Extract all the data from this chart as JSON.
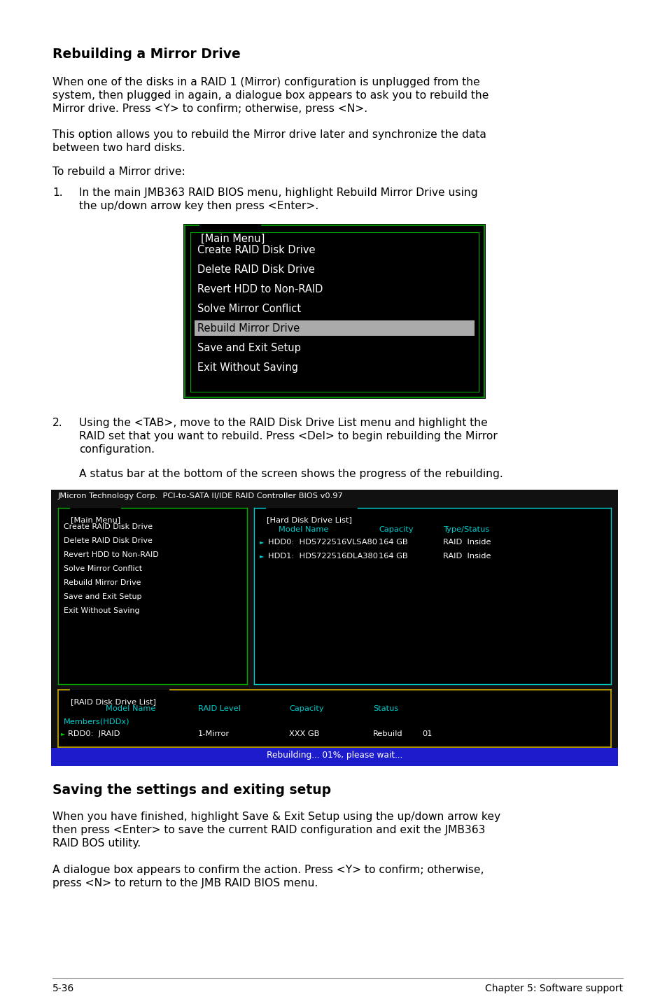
{
  "bg_color": "#ffffff",
  "title1": "Rebuilding a Mirror Drive",
  "para1_lines": [
    "When one of the disks in a RAID 1 (Mirror) configuration is unplugged from the",
    "system, then plugged in again, a dialogue box appears to ask you to rebuild the",
    "Mirror drive. Press <Y> to confirm; otherwise, press <N>."
  ],
  "para2_lines": [
    "This option allows you to rebuild the Mirror drive later and synchronize the data",
    "between two hard disks."
  ],
  "para3": "To rebuild a Mirror drive:",
  "step1_num": "1.",
  "step1_lines": [
    "In the main JMB363 RAID BIOS menu, highlight Rebuild Mirror Drive using",
    "the up/down arrow key then press <Enter>."
  ],
  "menu1_title": "[Main Menu]",
  "menu1_border_color": "#00aa00",
  "menu1_items": [
    "Create RAID Disk Drive",
    "Delete RAID Disk Drive",
    "Revert HDD to Non-RAID",
    "Solve Mirror Conflict",
    "Rebuild Mirror Drive",
    "Save and Exit Setup",
    "Exit Without Saving"
  ],
  "menu1_highlighted": 4,
  "step2_num": "2.",
  "step2_lines": [
    "Using the <TAB>, move to the RAID Disk Drive List menu and highlight the",
    "RAID set that you want to rebuild. Press <Del> to begin rebuilding the Mirror",
    "configuration."
  ],
  "para4": "A status bar at the bottom of the screen shows the progress of the rebuilding.",
  "bios_header": "JMicron Technology Corp.  PCI-to-SATA II/IDE RAID Controller BIOS v0.97",
  "bios_main_menu_title": "[Main Menu]",
  "bios_main_items": [
    "Create RAID Disk Drive",
    "Delete RAID Disk Drive",
    "Revert HDD to Non-RAID",
    "Solve Mirror Conflict",
    "Rebuild Mirror Drive",
    "Save and Exit Setup",
    "Exit Without Saving"
  ],
  "bios_hdd_title": "[Hard Disk Drive List]",
  "bios_hdd_headers": [
    "Model Name",
    "Capacity",
    "Type/Status"
  ],
  "bios_hdd_rows": [
    [
      "HDD0:  HDS722516VLSA80",
      "164 GB",
      "RAID  Inside"
    ],
    [
      "HDD1:  HDS722516DLA380",
      "164 GB",
      "RAID  Inside"
    ]
  ],
  "bios_raid_title": "[RAID Disk Drive List]",
  "bios_raid_headers": [
    "Model Name",
    "RAID Level",
    "Capacity",
    "Status"
  ],
  "bios_raid_submember": "Members(HDDx)",
  "bios_raid_rows": [
    [
      "RDD0:  JRAID",
      "1-Mirror",
      "XXX GB",
      "Rebuild",
      "01"
    ]
  ],
  "bios_status_bar": "Rebuilding... 01%, please wait...",
  "title2": "Saving the settings and exiting setup",
  "para5_lines": [
    "When you have finished, highlight Save & Exit Setup using the up/down arrow key",
    "then press <Enter> to save the current RAID configuration and exit the JMB363",
    "RAID BOS utility."
  ],
  "para6_lines": [
    "A dialogue box appears to confirm the action. Press <Y> to confirm; otherwise,",
    "press <N> to return to the JMB RAID BIOS menu."
  ],
  "footer_left": "5-36",
  "footer_right": "Chapter 5: Software support"
}
